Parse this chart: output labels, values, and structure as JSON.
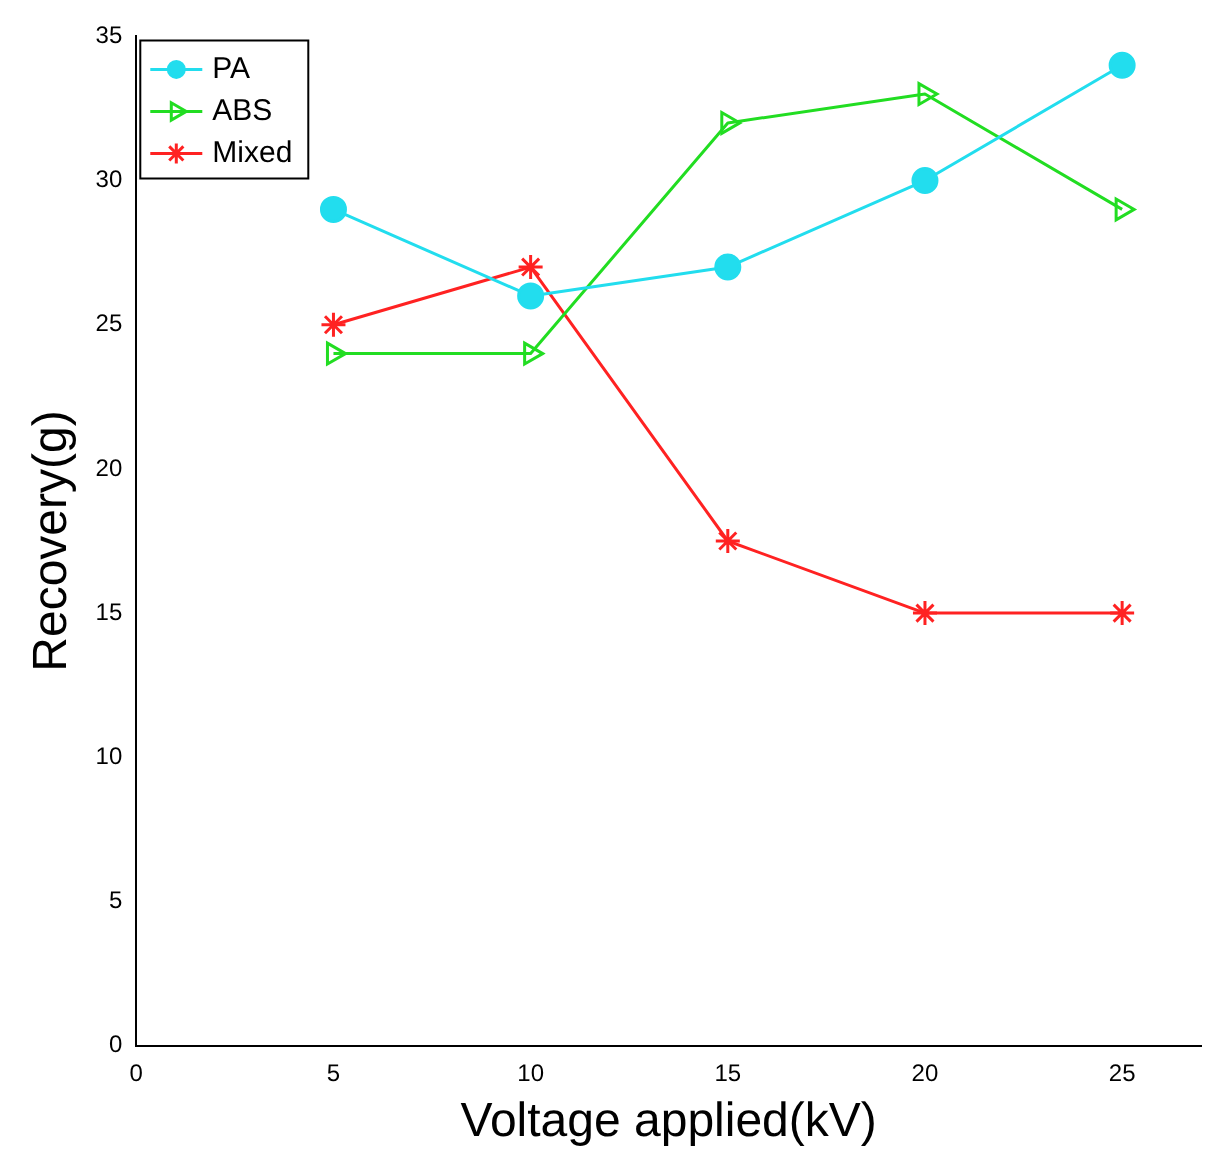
{
  "chart_data": {
    "type": "line",
    "xlabel": "Voltage applied(kV)",
    "ylabel": "Recovery(g)",
    "x": [
      5,
      10,
      15,
      20,
      25
    ],
    "series": [
      {
        "name": "PA",
        "color": "#22ddee",
        "marker": "circle",
        "values": [
          29,
          26,
          27,
          30,
          34
        ]
      },
      {
        "name": "ABS",
        "color": "#22dd22",
        "marker": "triangle",
        "values": [
          24,
          24,
          32,
          33,
          29
        ]
      },
      {
        "name": "Mixed",
        "color": "#ff2222",
        "marker": "cross",
        "values": [
          25,
          27,
          17.5,
          15,
          15
        ]
      }
    ],
    "xlim": [
      0,
      27
    ],
    "xticks": [
      0,
      5,
      10,
      15,
      20,
      25
    ],
    "ylim": [
      0,
      35
    ],
    "yticks": [
      0,
      5,
      10,
      15,
      20,
      25,
      30,
      35
    ],
    "grid": false,
    "legend": "top left",
    "line_style": "solid"
  }
}
